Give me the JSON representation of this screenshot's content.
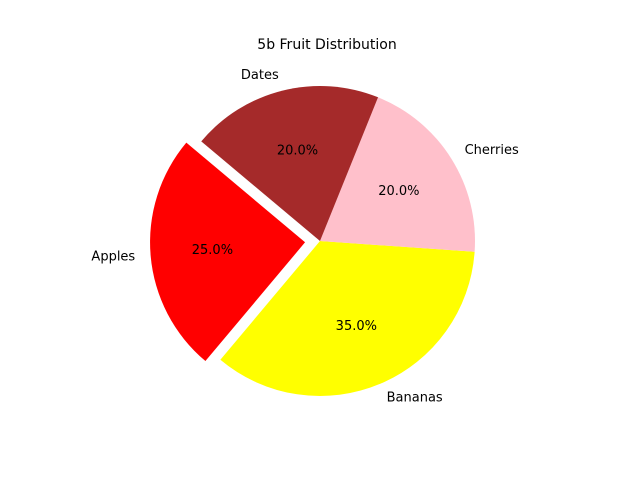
{
  "chart_data": {
    "type": "pie",
    "title": "5b Fruit Distribution",
    "start_angle_deg": 140,
    "direction": "counterclockwise",
    "slices": [
      {
        "label": "Apples",
        "value": 25.0,
        "pct_label": "25.0%",
        "color": "#ff0000",
        "exploded": true
      },
      {
        "label": "Bananas",
        "value": 35.0,
        "pct_label": "35.0%",
        "color": "#ffff00",
        "exploded": false
      },
      {
        "label": "Cherries",
        "value": 20.0,
        "pct_label": "20.0%",
        "color": "#ffc0cb",
        "exploded": false
      },
      {
        "label": "Dates",
        "value": 20.0,
        "pct_label": "20.0%",
        "color": "#a52a2a",
        "exploded": false
      }
    ]
  }
}
